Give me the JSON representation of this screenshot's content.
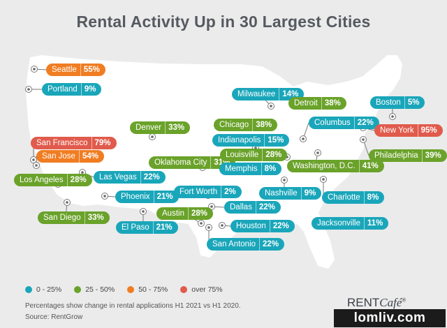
{
  "title": "Rental Activity Up in 30 Largest Cities",
  "colors": {
    "0-25": "#1aa6ba",
    "25-50": "#6aa22a",
    "50-75": "#f07d22",
    "over75": "#e05b4c",
    "map": "#ffffff"
  },
  "cities": [
    {
      "name": "Seattle",
      "pct": "55%",
      "cat": "orange"
    },
    {
      "name": "Portland",
      "pct": "9%",
      "cat": "teal"
    },
    {
      "name": "San Francisco",
      "pct": "79%",
      "cat": "red"
    },
    {
      "name": "San Jose",
      "pct": "54%",
      "cat": "orange"
    },
    {
      "name": "Los Angeles",
      "pct": "28%",
      "cat": "green"
    },
    {
      "name": "San Diego",
      "pct": "33%",
      "cat": "green"
    },
    {
      "name": "Las Vegas",
      "pct": "22%",
      "cat": "teal"
    },
    {
      "name": "Phoenix",
      "pct": "21%",
      "cat": "teal"
    },
    {
      "name": "El Paso",
      "pct": "21%",
      "cat": "teal"
    },
    {
      "name": "Denver",
      "pct": "33%",
      "cat": "green"
    },
    {
      "name": "Oklahoma City",
      "pct": "31%",
      "cat": "green"
    },
    {
      "name": "Fort Worth",
      "pct": "2%",
      "cat": "teal"
    },
    {
      "name": "Dallas",
      "pct": "22%",
      "cat": "teal"
    },
    {
      "name": "Austin",
      "pct": "28%",
      "cat": "green"
    },
    {
      "name": "Houston",
      "pct": "22%",
      "cat": "teal"
    },
    {
      "name": "San Antonio",
      "pct": "22%",
      "cat": "teal"
    },
    {
      "name": "Milwaukee",
      "pct": "14%",
      "cat": "teal"
    },
    {
      "name": "Chicago",
      "pct": "38%",
      "cat": "green"
    },
    {
      "name": "Indianapolis",
      "pct": "15%",
      "cat": "teal"
    },
    {
      "name": "Louisville",
      "pct": "28%",
      "cat": "green"
    },
    {
      "name": "Memphis",
      "pct": "8%",
      "cat": "teal"
    },
    {
      "name": "Nashville",
      "pct": "9%",
      "cat": "teal"
    },
    {
      "name": "Detroit",
      "pct": "38%",
      "cat": "green"
    },
    {
      "name": "Columbus",
      "pct": "22%",
      "cat": "teal"
    },
    {
      "name": "Washington, D.C.",
      "pct": "41%",
      "cat": "green"
    },
    {
      "name": "Charlotte",
      "pct": "8%",
      "cat": "teal"
    },
    {
      "name": "Jacksonville",
      "pct": "11%",
      "cat": "teal"
    },
    {
      "name": "Boston",
      "pct": "5%",
      "cat": "teal"
    },
    {
      "name": "New York",
      "pct": "95%",
      "cat": "red"
    },
    {
      "name": "Philadelphia",
      "pct": "39%",
      "cat": "green"
    }
  ],
  "legend": [
    {
      "label": "0 - 25%",
      "cat": "teal"
    },
    {
      "label": "25 - 50%",
      "cat": "green"
    },
    {
      "label": "50 - 75%",
      "cat": "orange"
    },
    {
      "label": "over 75%",
      "cat": "red"
    }
  ],
  "footnote": "Percentages show change in rental applications H1 2021 vs H1 2020.",
  "source": "Source: RentGrow",
  "brand": {
    "rent": "RENT",
    "cafe": "Café",
    "reg": "®"
  },
  "watermark": "lomliv.com"
}
